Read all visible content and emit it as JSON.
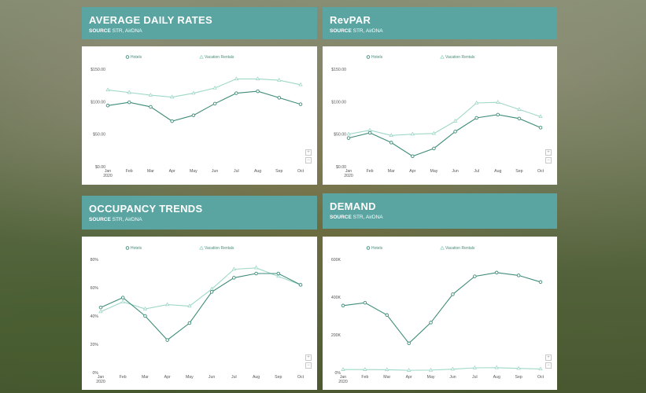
{
  "panels": [
    {
      "title": "AVERAGE DAILY RATES",
      "source_key": "SOURCE",
      "source_value": "STR, AirDNA",
      "chart_data": {
        "type": "line",
        "categories": [
          "Jan 2020",
          "Feb",
          "Mar",
          "Apr",
          "May",
          "Jun",
          "Jul",
          "Aug",
          "Sep",
          "Oct"
        ],
        "yticks": [
          "$0.00",
          "$50.00",
          "$100.00",
          "$150.00"
        ],
        "ylim": [
          0,
          150
        ],
        "series": [
          {
            "name": "Hotels",
            "color": "#3f8c79",
            "marker": "circle",
            "values": [
              94,
              99,
              92,
              70,
              79,
              97,
              113,
              116,
              106,
              96
            ]
          },
          {
            "name": "Vacation Rentals",
            "color": "#9ed8c8",
            "marker": "triangle",
            "values": [
              118,
              114,
              110,
              107,
              113,
              121,
              135,
              135,
              133,
              126
            ]
          }
        ],
        "legend": "top"
      }
    },
    {
      "title": "RevPAR",
      "source_key": "SOURCE",
      "source_value": "STR, AirDNA",
      "chart_data": {
        "type": "line",
        "categories": [
          "Jan 2020",
          "Feb",
          "Mar",
          "Apr",
          "May",
          "Jun",
          "Jul",
          "Aug",
          "Sep",
          "Oct"
        ],
        "yticks": [
          "$0.00",
          "$50.00",
          "$100.00",
          "$150.00"
        ],
        "ylim": [
          0,
          150
        ],
        "series": [
          {
            "name": "Hotels",
            "color": "#3f8c79",
            "marker": "circle",
            "values": [
              44,
              52,
              37,
              16,
              28,
              54,
              75,
              80,
              74,
              60
            ]
          },
          {
            "name": "Vacation Rentals",
            "color": "#9ed8c8",
            "marker": "triangle",
            "values": [
              50,
              56,
              48,
              50,
              51,
              70,
              98,
              99,
              88,
              77
            ]
          }
        ],
        "legend": "top"
      }
    },
    {
      "title": "OCCUPANCY TRENDS",
      "source_key": "SOURCE",
      "source_value": "STR, AirDNA",
      "chart_data": {
        "type": "line",
        "categories": [
          "Jan 2020",
          "Feb",
          "Mar",
          "Apr",
          "May",
          "Jun",
          "Jul",
          "Aug",
          "Sep",
          "Oct"
        ],
        "yticks": [
          "0%",
          "20%",
          "40%",
          "60%",
          "80%"
        ],
        "ylim": [
          0,
          80
        ],
        "series": [
          {
            "name": "Hotels",
            "color": "#3f8c79",
            "marker": "circle",
            "values": [
              46,
              53,
              40,
              23,
              35,
              57,
              67,
              70,
              70,
              62
            ]
          },
          {
            "name": "Vacation Rentals",
            "color": "#9ed8c8",
            "marker": "triangle",
            "values": [
              43,
              50,
              45,
              48,
              47,
              59,
              73,
              74,
              68,
              62
            ]
          }
        ],
        "legend": "top"
      }
    },
    {
      "title": "DEMAND",
      "source_key": "SOURCE",
      "source_value": "STR, AirDNA",
      "chart_data": {
        "type": "line",
        "categories": [
          "Jan 2020",
          "Feb",
          "Mar",
          "Apr",
          "May",
          "Jun",
          "Jul",
          "Aug",
          "Sep",
          "Oct"
        ],
        "yticks": [
          "0%",
          "200K",
          "400K",
          "600K"
        ],
        "ylim": [
          0,
          600000
        ],
        "series": [
          {
            "name": "Hotels",
            "color": "#3f8c79",
            "marker": "circle",
            "values": [
              355000,
              370000,
              305000,
              155000,
              265000,
              415000,
              510000,
              530000,
              515000,
              480000
            ]
          },
          {
            "name": "Vacation Rentals",
            "color": "#9ed8c8",
            "marker": "triangle",
            "values": [
              16000,
              16000,
              15000,
              12000,
              13000,
              18000,
              25000,
              26000,
              22000,
              19000
            ]
          }
        ],
        "legend": "top"
      }
    }
  ],
  "zoom": {
    "plus": "+",
    "minus": "−"
  }
}
